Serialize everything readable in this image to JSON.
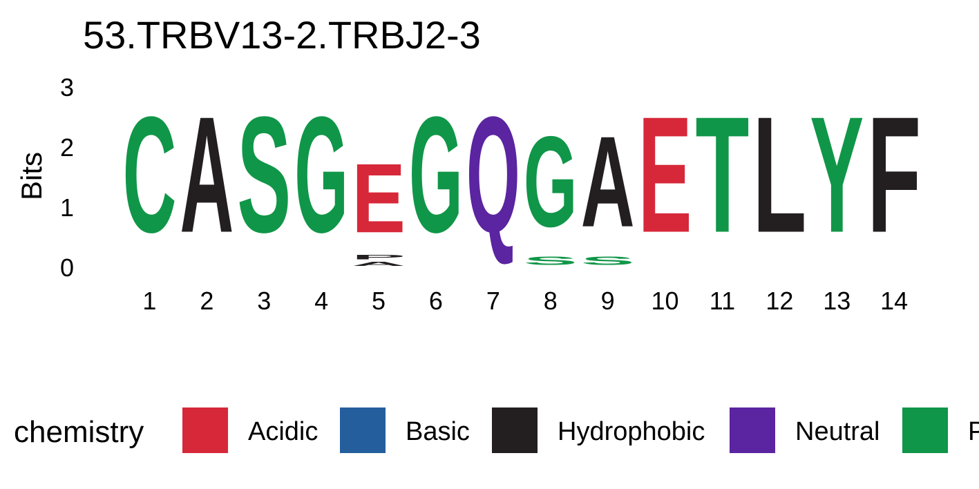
{
  "chart_data": {
    "type": "sequence-logo",
    "title": "53.TRBV13-2.TRBJ2-3",
    "ylabel": "Bits",
    "xlabel": "",
    "ylim": [
      0,
      3.1
    ],
    "yticks": [
      0,
      1,
      2,
      3
    ],
    "positions": [
      "1",
      "2",
      "3",
      "4",
      "5",
      "6",
      "7",
      "8",
      "9",
      "10",
      "11",
      "12",
      "13",
      "14"
    ],
    "columns": [
      [
        {
          "letter": "C",
          "bits": 3.07
        }
      ],
      [
        {
          "letter": "A",
          "bits": 3.07
        }
      ],
      [
        {
          "letter": "S",
          "bits": 3.07
        }
      ],
      [
        {
          "letter": "G",
          "bits": 3.07
        }
      ],
      [
        {
          "letter": "A",
          "bits": 0.11
        },
        {
          "letter": "P",
          "bits": 0.12
        },
        {
          "letter": "E",
          "bits": 1.83
        }
      ],
      [
        {
          "letter": "G",
          "bits": 3.07
        }
      ],
      [
        {
          "letter": "Q",
          "bits": 3.07
        }
      ],
      [
        {
          "letter": "S",
          "bits": 0.22
        },
        {
          "letter": "G",
          "bits": 2.4
        }
      ],
      [
        {
          "letter": "S",
          "bits": 0.22
        },
        {
          "letter": "A",
          "bits": 2.4
        }
      ],
      [
        {
          "letter": "E",
          "bits": 3.07
        }
      ],
      [
        {
          "letter": "T",
          "bits": 3.07
        }
      ],
      [
        {
          "letter": "L",
          "bits": 3.07
        }
      ],
      [
        {
          "letter": "Y",
          "bits": 3.07
        }
      ],
      [
        {
          "letter": "F",
          "bits": 3.07
        }
      ]
    ],
    "legend": {
      "title": "chemistry",
      "position": "bottom",
      "entries": [
        {
          "name": "Acidic",
          "color": "#d62839"
        },
        {
          "name": "Basic",
          "color": "#255e9d"
        },
        {
          "name": "Hydrophobic",
          "color": "#231f20"
        },
        {
          "name": "Neutral",
          "color": "#5b24a0"
        },
        {
          "name": "Polar",
          "color": "#109648"
        }
      ]
    },
    "residue_chemistry": {
      "A": "Hydrophobic",
      "C": "Polar",
      "E": "Acidic",
      "F": "Hydrophobic",
      "G": "Polar",
      "L": "Hydrophobic",
      "P": "Hydrophobic",
      "Q": "Neutral",
      "S": "Polar",
      "T": "Polar",
      "Y": "Polar"
    }
  }
}
